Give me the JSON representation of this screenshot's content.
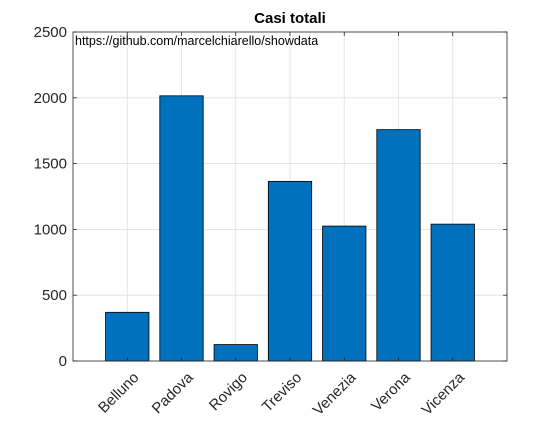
{
  "chart_data": {
    "type": "bar",
    "title": "Casi totali",
    "annotation": "https://github.com/marcelchiarello/showdata",
    "categories": [
      "Belluno",
      "Padova",
      "Rovigo",
      "Treviso",
      "Venezia",
      "Verona",
      "Vicenza"
    ],
    "values": [
      370,
      2015,
      125,
      1365,
      1025,
      1758,
      1040
    ],
    "xlabel": "",
    "ylabel": "",
    "ylim": [
      0,
      2500
    ],
    "yticks": [
      0,
      500,
      1000,
      1500,
      2000,
      2500
    ],
    "grid": true,
    "legend": "none",
    "bar_color": "#0072BD",
    "x_tick_rotation": "45 degrees"
  }
}
